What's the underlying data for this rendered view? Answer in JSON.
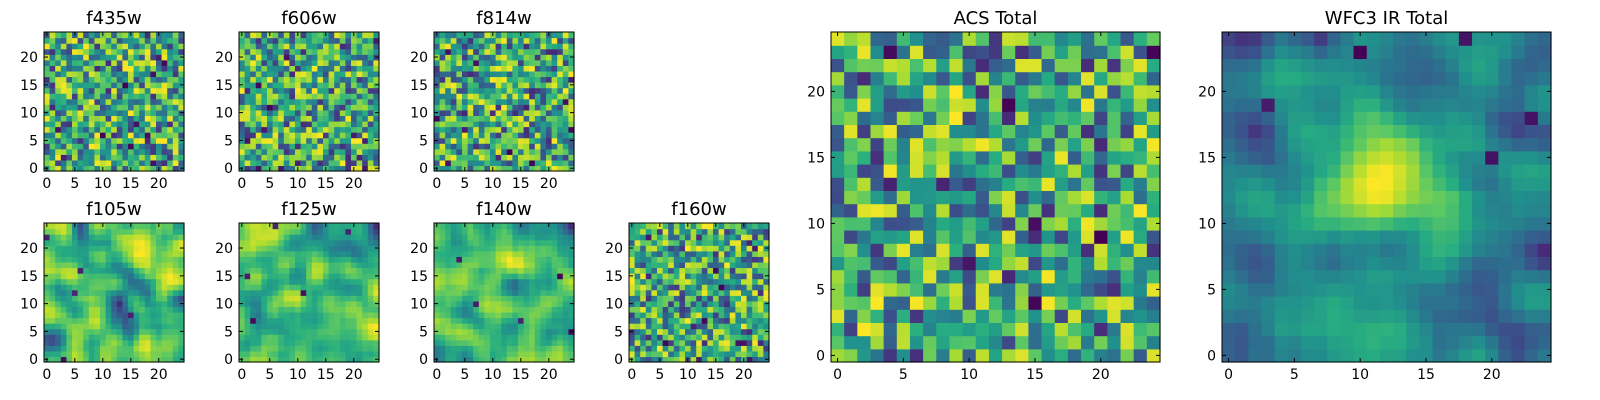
{
  "chart_data": [
    {
      "type": "heatmap",
      "title": "f435w",
      "grid_size": 25,
      "xticks": [
        0,
        5,
        10,
        15,
        20
      ],
      "yticks": [
        0,
        5,
        10,
        15,
        20
      ],
      "xlim": [
        -0.5,
        24.5
      ],
      "ylim": [
        -0.5,
        24.5
      ],
      "colormap": "viridis",
      "texture": "pixel-noise"
    },
    {
      "type": "heatmap",
      "title": "f606w",
      "grid_size": 25,
      "xticks": [
        0,
        5,
        10,
        15,
        20
      ],
      "yticks": [
        0,
        5,
        10,
        15,
        20
      ],
      "xlim": [
        -0.5,
        24.5
      ],
      "ylim": [
        -0.5,
        24.5
      ],
      "colormap": "viridis",
      "texture": "pixel-noise"
    },
    {
      "type": "heatmap",
      "title": "f814w",
      "grid_size": 25,
      "xticks": [
        0,
        5,
        10,
        15,
        20
      ],
      "yticks": [
        0,
        5,
        10,
        15,
        20
      ],
      "xlim": [
        -0.5,
        24.5
      ],
      "ylim": [
        -0.5,
        24.5
      ],
      "colormap": "viridis",
      "texture": "pixel-noise"
    },
    {
      "type": "heatmap",
      "title": "f105w",
      "grid_size": 25,
      "xticks": [
        0,
        5,
        10,
        15,
        20
      ],
      "yticks": [
        0,
        5,
        10,
        15,
        20
      ],
      "xlim": [
        -0.5,
        24.5
      ],
      "ylim": [
        -0.5,
        24.5
      ],
      "colormap": "viridis",
      "texture": "smooth-noise"
    },
    {
      "type": "heatmap",
      "title": "f125w",
      "grid_size": 25,
      "xticks": [
        0,
        5,
        10,
        15,
        20
      ],
      "yticks": [
        0,
        5,
        10,
        15,
        20
      ],
      "xlim": [
        -0.5,
        24.5
      ],
      "ylim": [
        -0.5,
        24.5
      ],
      "colormap": "viridis",
      "texture": "smooth-noise"
    },
    {
      "type": "heatmap",
      "title": "f140w",
      "grid_size": 25,
      "xticks": [
        0,
        5,
        10,
        15,
        20
      ],
      "yticks": [
        0,
        5,
        10,
        15,
        20
      ],
      "xlim": [
        -0.5,
        24.5
      ],
      "ylim": [
        -0.5,
        24.5
      ],
      "colormap": "viridis",
      "texture": "smooth-noise"
    },
    {
      "type": "heatmap",
      "title": "f160w",
      "grid_size": 25,
      "xticks": [
        0,
        5,
        10,
        15,
        20
      ],
      "yticks": [
        0,
        5,
        10,
        15,
        20
      ],
      "xlim": [
        -0.5,
        24.5
      ],
      "ylim": [
        -0.5,
        24.5
      ],
      "colormap": "viridis",
      "texture": "pixel-noise"
    },
    {
      "type": "heatmap",
      "title": "ACS Total",
      "grid_size": 25,
      "xticks": [
        0,
        5,
        10,
        15,
        20
      ],
      "yticks": [
        0,
        5,
        10,
        15,
        20
      ],
      "xlim": [
        -0.5,
        24.5
      ],
      "ylim": [
        -0.5,
        24.5
      ],
      "colormap": "viridis",
      "texture": "pixel-noise"
    },
    {
      "type": "heatmap",
      "title": "WFC3 IR Total",
      "grid_size": 25,
      "xticks": [
        0,
        5,
        10,
        15,
        20
      ],
      "yticks": [
        0,
        5,
        10,
        15,
        20
      ],
      "xlim": [
        -0.5,
        24.5
      ],
      "ylim": [
        -0.5,
        24.5
      ],
      "colormap": "viridis",
      "texture": "smooth-noise-central-peak"
    }
  ],
  "colors": {
    "viridis": [
      "#440154",
      "#472c7a",
      "#3b518b",
      "#2c718e",
      "#21908d",
      "#27ad81",
      "#5cc863",
      "#aadc32",
      "#fde725"
    ]
  }
}
